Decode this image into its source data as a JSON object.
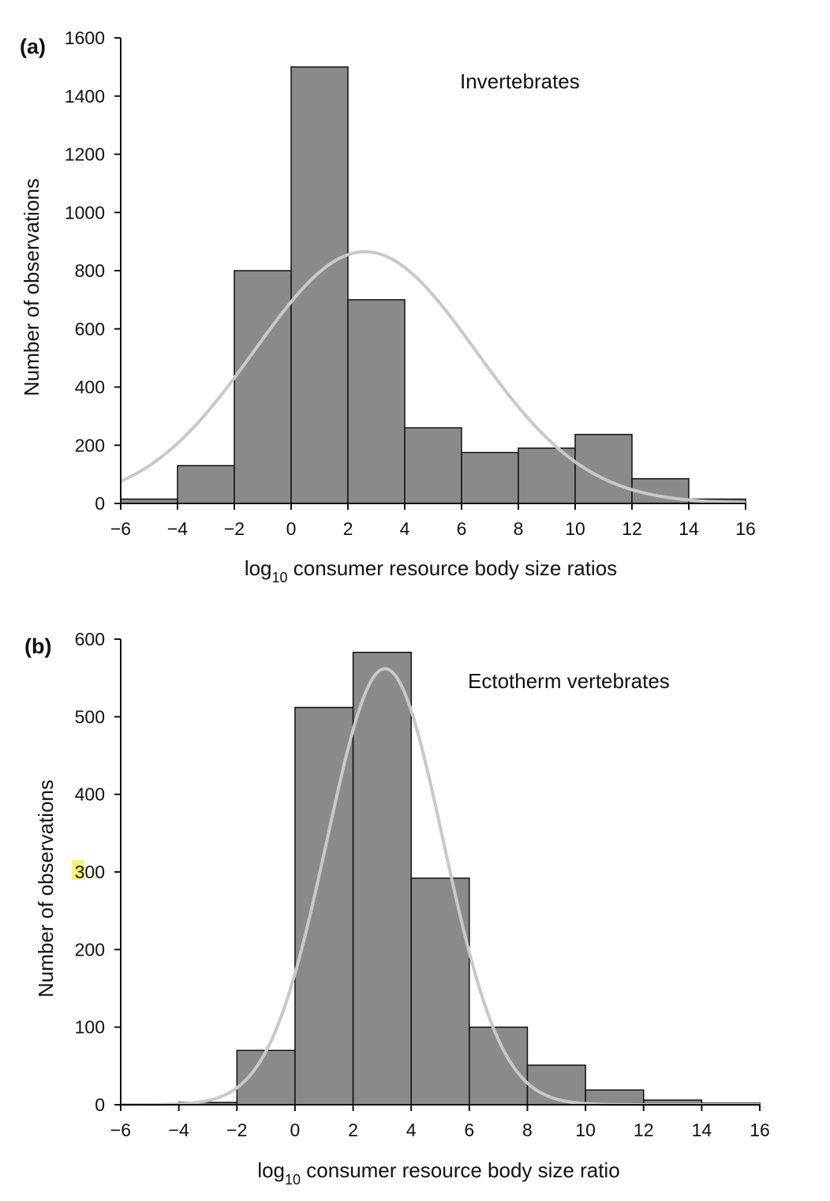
{
  "colors": {
    "bar": "#8a8a8a",
    "curve": "#c8c8c8",
    "highlight": "#fff176"
  },
  "chart_data": [
    {
      "type": "bar",
      "panel_label": "(a)",
      "annotation": "Invertebrates",
      "xlabel_prefix": "log",
      "xlabel_sub": "10",
      "xlabel_rest": " consumer resource body size ratios",
      "ylabel": "Number of observations",
      "xlim": [
        -6,
        16
      ],
      "ylim": [
        0,
        1600
      ],
      "xticks": [
        -6,
        -4,
        -2,
        0,
        2,
        4,
        6,
        8,
        10,
        12,
        14,
        16
      ],
      "xtick_labels": [
        "−6",
        "−4",
        "−2",
        "0",
        "2",
        "4",
        "6",
        "8",
        "10",
        "12",
        "14",
        "16"
      ],
      "yticks": [
        0,
        200,
        400,
        600,
        800,
        1000,
        1200,
        1400,
        1600
      ],
      "ytick_labels": [
        "0",
        "200",
        "400",
        "600",
        "800",
        "1000",
        "1200",
        "1400",
        "1600"
      ],
      "bins": [
        [
          -6,
          -4
        ],
        [
          -4,
          -2
        ],
        [
          -2,
          0
        ],
        [
          0,
          2
        ],
        [
          2,
          4
        ],
        [
          4,
          6
        ],
        [
          6,
          8
        ],
        [
          8,
          10
        ],
        [
          10,
          12
        ],
        [
          12,
          14
        ],
        [
          14,
          16
        ]
      ],
      "values": [
        15,
        130,
        800,
        1500,
        700,
        260,
        175,
        190,
        237,
        85,
        15
      ],
      "fit": {
        "mean": 2.6,
        "sd": 3.9,
        "peak": 865
      }
    },
    {
      "type": "bar",
      "panel_label": "(b)",
      "annotation": "Ectotherm vertebrates",
      "xlabel_prefix": "log",
      "xlabel_sub": "10",
      "xlabel_rest": " consumer resource body size ratio",
      "ylabel": "Number of observations",
      "xlim": [
        -6,
        16
      ],
      "ylim": [
        0,
        600
      ],
      "xticks": [
        -6,
        -4,
        -2,
        0,
        2,
        4,
        6,
        8,
        10,
        12,
        14,
        16
      ],
      "xtick_labels": [
        "−6",
        "−4",
        "−2",
        "0",
        "2",
        "4",
        "6",
        "8",
        "10",
        "12",
        "14",
        "16"
      ],
      "yticks": [
        0,
        100,
        200,
        300,
        400,
        500,
        600
      ],
      "ytick_labels": [
        "0",
        "100",
        "200",
        "300",
        "400",
        "500",
        "600"
      ],
      "highlighted_ytick": "300",
      "bins": [
        [
          -6,
          -4
        ],
        [
          -4,
          -2
        ],
        [
          -2,
          0
        ],
        [
          0,
          2
        ],
        [
          2,
          4
        ],
        [
          4,
          6
        ],
        [
          6,
          8
        ],
        [
          8,
          10
        ],
        [
          10,
          12
        ],
        [
          12,
          14
        ],
        [
          14,
          16
        ]
      ],
      "values": [
        1,
        3,
        70,
        512,
        583,
        292,
        100,
        51,
        19,
        6,
        2
      ],
      "fit": {
        "mean": 3.1,
        "sd": 2.0,
        "peak": 562
      }
    }
  ]
}
